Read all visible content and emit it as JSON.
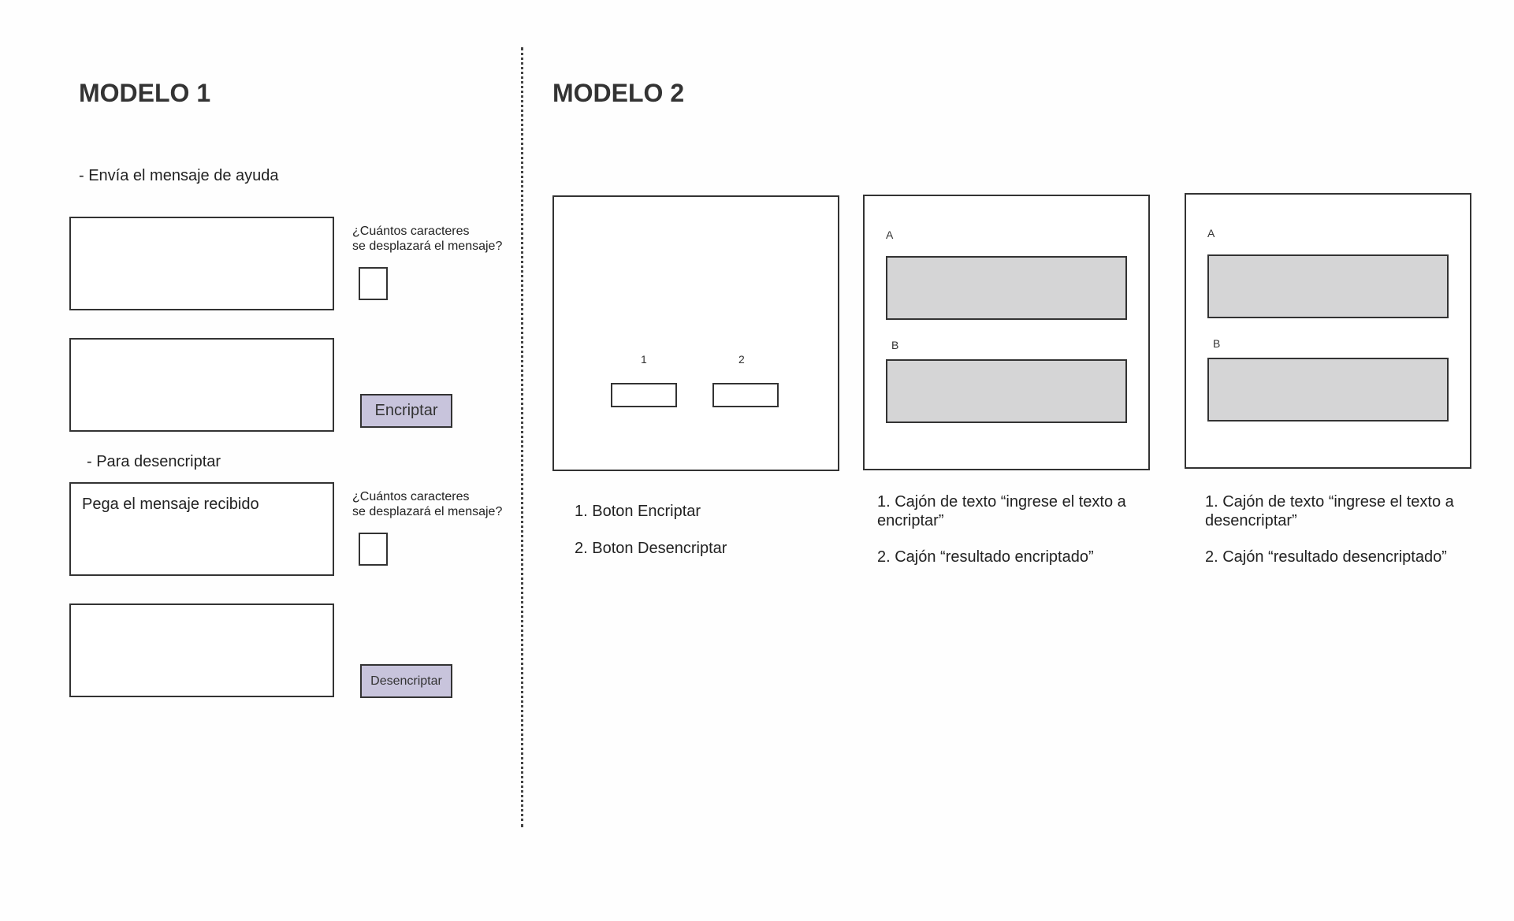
{
  "modelo1": {
    "title": "MODELO 1",
    "section1_label": "-  Envía el mensaje de ayuda",
    "shift_question_1_line1": "¿Cuántos caracteres",
    "shift_question_1_line2": "se desplazará el mensaje?",
    "encrypt_button": "Encriptar",
    "section2_label": "- Para desencriptar",
    "paste_placeholder": "Pega el mensaje recibido",
    "shift_question_2_line1": "¿Cuántos caracteres",
    "shift_question_2_line2": "se desplazará el mensaje?",
    "decrypt_button": "Desencriptar",
    "button_color": "#c8c4dc"
  },
  "modelo2": {
    "title": "MODELO 2",
    "panel1": {
      "marker1": "1",
      "marker2": "2",
      "notes": [
        "1. Boton Encriptar",
        "2. Boton Desencriptar"
      ]
    },
    "panel2": {
      "label_a": "A",
      "label_b": "B",
      "note1": "1. Cajón de texto “ingrese el texto a encriptar”",
      "note2": "2. Cajón “resultado encriptado”"
    },
    "panel3": {
      "label_a": "A",
      "label_b": "B",
      "note1": "1. Cajón de texto “ingrese el texto a desencriptar”",
      "note2": "2. Cajón “resultado desencriptado”"
    },
    "field_color": "#d5d5d6"
  }
}
